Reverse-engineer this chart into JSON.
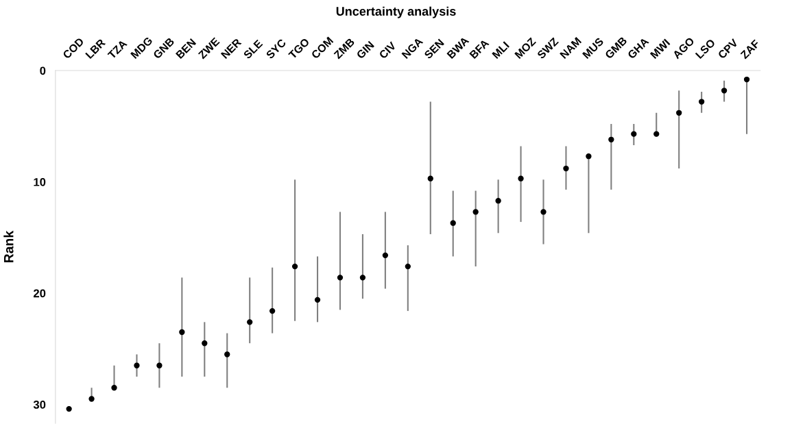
{
  "chart_data": {
    "type": "scatter",
    "title": "Uncertainty analysis",
    "ylabel": "Rank",
    "categories": [
      "COD",
      "LBR",
      "TZA",
      "MDG",
      "GNB",
      "BEN",
      "ZWE",
      "NER",
      "SLE",
      "SYC",
      "TGO",
      "COM",
      "ZMB",
      "GIN",
      "CIV",
      "NGA",
      "SEN",
      "BWA",
      "BFA",
      "MLI",
      "MOZ",
      "SWZ",
      "NAM",
      "MUS",
      "GMB",
      "GHA",
      "MWI",
      "AGO",
      "LSO",
      "CPV",
      "ZAF"
    ],
    "series": [
      {
        "color": "#000000",
        "values": [
          30.4,
          29.5,
          28.5,
          26.5,
          26.5,
          23.5,
          24.5,
          25.5,
          22.6,
          21.6,
          17.6,
          20.6,
          18.6,
          18.6,
          16.6,
          17.6,
          9.7,
          13.7,
          12.7,
          11.7,
          9.7,
          12.7,
          8.8,
          7.7,
          6.2,
          5.7,
          5.7,
          3.8,
          2.8,
          1.8,
          0.8
        ],
        "errors": [
          null,
          [
            28.5,
            29.5
          ],
          [
            26.5,
            28.5
          ],
          [
            25.5,
            27.5
          ],
          [
            24.5,
            28.5
          ],
          [
            18.6,
            27.5
          ],
          [
            22.6,
            27.5
          ],
          [
            23.6,
            28.5
          ],
          [
            18.6,
            24.5
          ],
          [
            17.7,
            23.6
          ],
          [
            9.8,
            22.5
          ],
          [
            16.7,
            22.6
          ],
          [
            12.7,
            21.5
          ],
          [
            14.7,
            20.5
          ],
          [
            12.7,
            19.6
          ],
          [
            15.7,
            21.6
          ],
          [
            2.8,
            14.7
          ],
          [
            10.8,
            16.7
          ],
          [
            10.8,
            17.6
          ],
          [
            9.8,
            14.6
          ],
          [
            6.8,
            13.6
          ],
          [
            9.8,
            15.6
          ],
          [
            6.8,
            10.7
          ],
          [
            7.7,
            14.6
          ],
          [
            4.8,
            10.7
          ],
          [
            4.8,
            6.7
          ],
          [
            3.8,
            5.7
          ],
          [
            1.8,
            8.8
          ],
          [
            1.9,
            3.8
          ],
          [
            0.9,
            2.8
          ],
          [
            0.8,
            5.7
          ]
        ]
      }
    ],
    "ylim": [
      31.7,
      0
    ],
    "yticks": [
      0,
      10,
      20,
      30
    ],
    "marker": "circle",
    "grid": false
  }
}
